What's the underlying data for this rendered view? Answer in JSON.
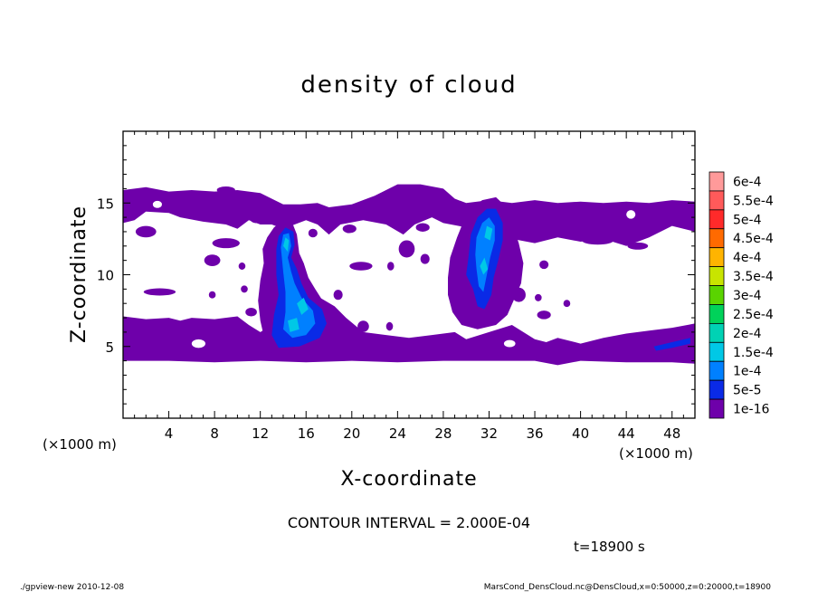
{
  "chart_data": {
    "type": "heatmap",
    "title": "density of cloud",
    "xlabel": "X-coordinate",
    "ylabel": "Z-coordinate",
    "x_unit": "(×1000 m)",
    "y_unit": "(×1000 m)",
    "xlim": [
      0,
      50
    ],
    "ylim": [
      0,
      20
    ],
    "x_ticks": [
      4,
      8,
      12,
      16,
      20,
      24,
      28,
      32,
      36,
      40,
      44,
      48
    ],
    "y_ticks": [
      5,
      10,
      15
    ],
    "contour_interval_text": "CONTOUR INTERVAL = 2.000E-04",
    "time_text": "t=18900 s",
    "footer_left": "./gpview-new   2010-12-08",
    "footer_right": "MarsCond_DensCloud.nc@DensCloud,x=0:50000,z=0:20000,t=18900",
    "legend": [
      {
        "label": "6e-4",
        "color": "#ff9a9a"
      },
      {
        "label": "5.5e-4",
        "color": "#ff5a5a"
      },
      {
        "label": "5e-4",
        "color": "#ff2a2a"
      },
      {
        "label": "4.5e-4",
        "color": "#ff6a00"
      },
      {
        "label": "4e-4",
        "color": "#ffb400"
      },
      {
        "label": "3.5e-4",
        "color": "#c8e400"
      },
      {
        "label": "3e-4",
        "color": "#5ad400"
      },
      {
        "label": "2.5e-4",
        "color": "#00d25a"
      },
      {
        "label": "2e-4",
        "color": "#00d2b4"
      },
      {
        "label": "1.5e-4",
        "color": "#00c8e6"
      },
      {
        "label": "1e-4",
        "color": "#0080ff"
      },
      {
        "label": "5e-5",
        "color": "#0a2ae6"
      },
      {
        "label": "1e-16",
        "color": "#6e00aa"
      }
    ],
    "background_color": "#6e00aa"
  }
}
